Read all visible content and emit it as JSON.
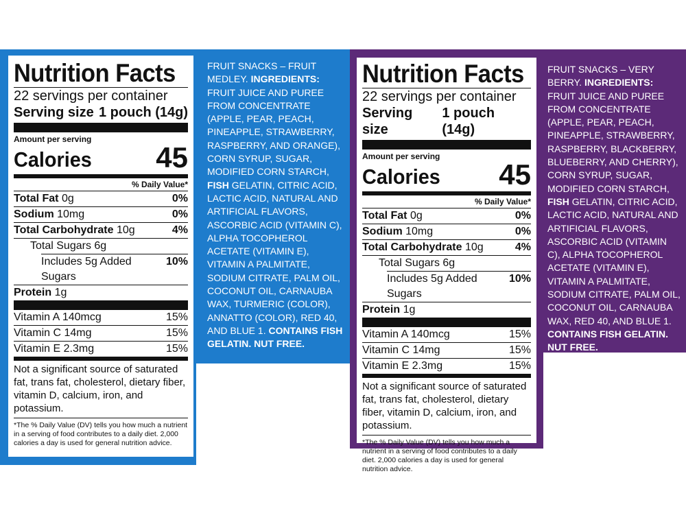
{
  "colors": {
    "left_panel": "#1e7ccc",
    "right_panel": "#5c2a78",
    "label_bg": "#ffffff",
    "text": "#111111"
  },
  "left": {
    "title": "Nutrition Facts",
    "servings": "22 servings per container",
    "serving_size_label": "Serving size",
    "serving_size_value": "1 pouch (14g)",
    "amount_per_serving": "Amount per serving",
    "calories_label": "Calories",
    "calories_value": "45",
    "dv_header": "% Daily Value*",
    "total_fat_label": "Total Fat",
    "total_fat_amt": "0g",
    "total_fat_dv": "0%",
    "sodium_label": "Sodium",
    "sodium_amt": "10mg",
    "sodium_dv": "0%",
    "carb_label": "Total Carbohydrate",
    "carb_amt": "10g",
    "carb_dv": "4%",
    "sugars": "Total Sugars 6g",
    "added_sugars": "Includes 5g Added Sugars",
    "added_sugars_dv": "10%",
    "protein_label": "Protein",
    "protein_amt": "1g",
    "vitamins": [
      {
        "name": "Vitamin A 140mcg",
        "dv": "15%"
      },
      {
        "name": "Vitamin C 14mg",
        "dv": "15%"
      },
      {
        "name": "Vitamin E 2.3mg",
        "dv": "15%"
      }
    ],
    "not_significant": "Not a significant source of saturated fat, trans fat, cholesterol, dietary fiber, vitamin D, calcium, iron, and potassium.",
    "footnote": "*The % Daily Value (DV) tells you how much a nutrient in a serving of food contributes to a daily diet. 2,000 calories a day is used for general nutrition advice.",
    "ingredients": {
      "product": "FRUIT SNACKS – FRUIT MEDLEY.",
      "heading": "INGREDIENTS:",
      "text1": "FRUIT JUICE AND PUREE FROM CONCENTRATE (APPLE, PEAR, PEACH, PINEAPPLE, STRAWBERRY, RASPBERRY, AND ORANGE), CORN SYRUP, SUGAR, MODIFIED CORN STARCH,",
      "fish": "FISH",
      "text2": "GELATIN, CITRIC ACID, LACTIC ACID, NATURAL AND ARTIFICIAL FLAVORS, ASCORBIC ACID (VITAMIN C), ALPHA TOCOPHEROL ACETATE (VITAMIN E), VITAMIN A PALMITATE, SODIUM CITRATE, PALM OIL, COCONUT OIL, CARNAUBA WAX, TURMERIC (COLOR), ANNATTO (COLOR), RED 40, AND BLUE 1.",
      "contains": "CONTAINS FISH GELATIN. NUT FREE."
    }
  },
  "right": {
    "title": "Nutrition Facts",
    "servings": "22 servings per container",
    "serving_size_label": "Serving size",
    "serving_size_value": "1 pouch (14g)",
    "amount_per_serving": "Amount per serving",
    "calories_label": "Calories",
    "calories_value": "45",
    "dv_header": "% Daily Value*",
    "total_fat_label": "Total Fat",
    "total_fat_amt": "0g",
    "total_fat_dv": "0%",
    "sodium_label": "Sodium",
    "sodium_amt": "10mg",
    "sodium_dv": "0%",
    "carb_label": "Total Carbohydrate",
    "carb_amt": "10g",
    "carb_dv": "4%",
    "sugars": "Total Sugars 6g",
    "added_sugars": "Includes 5g Added Sugars",
    "added_sugars_dv": "10%",
    "protein_label": "Protein",
    "protein_amt": "1g",
    "vitamins": [
      {
        "name": "Vitamin A 140mcg",
        "dv": "15%"
      },
      {
        "name": "Vitamin C 14mg",
        "dv": "15%"
      },
      {
        "name": "Vitamin E 2.3mg",
        "dv": "15%"
      }
    ],
    "not_significant": "Not a significant source of saturated fat, trans fat, cholesterol, dietary fiber, vitamin D, calcium, iron, and potassium.",
    "footnote": "*The % Daily Value (DV) tells you how much a nutrient in a serving of food contributes to a daily diet. 2,000 calories a day is used for general nutrition advice.",
    "ingredients": {
      "product": "FRUIT SNACKS – VERY BERRY.",
      "heading": "INGREDIENTS:",
      "text1": "FRUIT JUICE AND PUREE FROM CONCENTRATE (APPLE, PEAR, PEACH, PINEAPPLE, STRAWBERRY, RASPBERRY, BLACKBERRY, BLUEBERRY, AND CHERRY), CORN SYRUP, SUGAR, MODIFIED CORN STARCH,",
      "fish": "FISH",
      "text2": "GELATIN, CITRIC ACID, LACTIC ACID, NATURAL AND ARTIFICIAL FLAVORS, ASCORBIC ACID (VITAMIN C), ALPHA TOCOPHEROL ACETATE (VITAMIN E), VITAMIN A PALMITATE, SODIUM CITRATE, PALM OIL, COCONUT OIL, CARNAUBA WAX, RED 40, AND BLUE 1.",
      "contains": "CONTAINS FISH GELATIN. NUT FREE."
    }
  }
}
